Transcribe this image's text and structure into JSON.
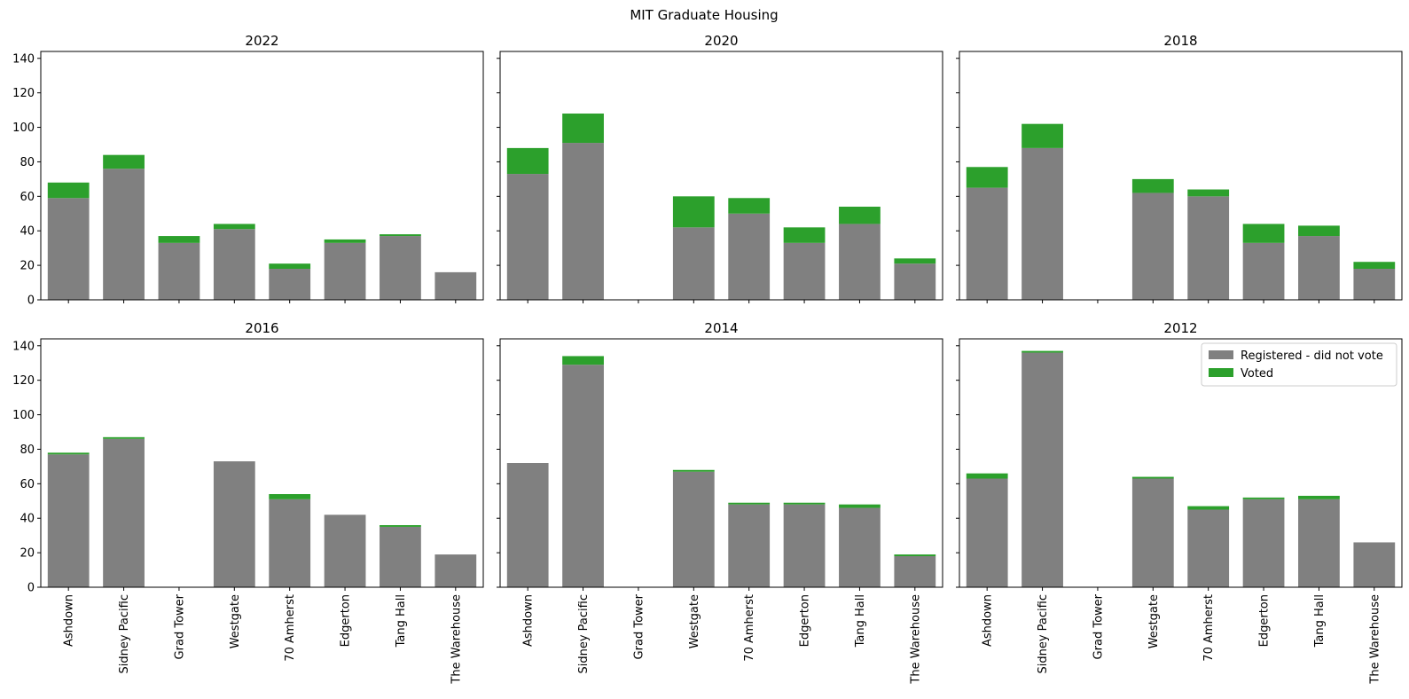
{
  "suptitle": "MIT Graduate Housing",
  "colors": {
    "registered": "#808080",
    "voted": "#2ca02c"
  },
  "legend": {
    "placement": "upper right",
    "panel_index": 5
  },
  "chart_data": [
    {
      "type": "bar",
      "stacked": true,
      "title": "2022",
      "categories": [
        "Ashdown",
        "Sidney Pacific",
        "Grad Tower",
        "Westgate",
        "70 Amherst",
        "Edgerton",
        "Tang Hall",
        "The Warehouse"
      ],
      "ylim": [
        0,
        144
      ],
      "yticks": [
        0,
        20,
        40,
        60,
        80,
        100,
        120,
        140
      ],
      "series": [
        {
          "name": "Registered - did not vote",
          "values": [
            59,
            76,
            33,
            41,
            18,
            33,
            37,
            16
          ]
        },
        {
          "name": "Voted",
          "values": [
            9,
            8,
            4,
            3,
            3,
            2,
            1,
            0
          ]
        }
      ]
    },
    {
      "type": "bar",
      "stacked": true,
      "title": "2020",
      "categories": [
        "Ashdown",
        "Sidney Pacific",
        "Grad Tower",
        "Westgate",
        "70 Amherst",
        "Edgerton",
        "Tang Hall",
        "The Warehouse"
      ],
      "ylim": [
        0,
        144
      ],
      "yticks": [
        0,
        20,
        40,
        60,
        80,
        100,
        120,
        140
      ],
      "series": [
        {
          "name": "Registered - did not vote",
          "values": [
            73,
            91,
            0,
            42,
            50,
            33,
            44,
            21
          ]
        },
        {
          "name": "Voted",
          "values": [
            15,
            17,
            0,
            18,
            9,
            9,
            10,
            3
          ]
        }
      ]
    },
    {
      "type": "bar",
      "stacked": true,
      "title": "2018",
      "categories": [
        "Ashdown",
        "Sidney Pacific",
        "Grad Tower",
        "Westgate",
        "70 Amherst",
        "Edgerton",
        "Tang Hall",
        "The Warehouse"
      ],
      "ylim": [
        0,
        144
      ],
      "yticks": [
        0,
        20,
        40,
        60,
        80,
        100,
        120,
        140
      ],
      "series": [
        {
          "name": "Registered - did not vote",
          "values": [
            65,
            88,
            0,
            62,
            60,
            33,
            37,
            18
          ]
        },
        {
          "name": "Voted",
          "values": [
            12,
            14,
            0,
            8,
            4,
            11,
            6,
            4
          ]
        }
      ]
    },
    {
      "type": "bar",
      "stacked": true,
      "title": "2016",
      "categories": [
        "Ashdown",
        "Sidney Pacific",
        "Grad Tower",
        "Westgate",
        "70 Amherst",
        "Edgerton",
        "Tang Hall",
        "The Warehouse"
      ],
      "ylim": [
        0,
        144
      ],
      "yticks": [
        0,
        20,
        40,
        60,
        80,
        100,
        120,
        140
      ],
      "series": [
        {
          "name": "Registered - did not vote",
          "values": [
            77,
            86,
            0,
            73,
            51,
            42,
            35,
            19
          ]
        },
        {
          "name": "Voted",
          "values": [
            1,
            1,
            0,
            0,
            3,
            0,
            1,
            0
          ]
        }
      ]
    },
    {
      "type": "bar",
      "stacked": true,
      "title": "2014",
      "categories": [
        "Ashdown",
        "Sidney Pacific",
        "Grad Tower",
        "Westgate",
        "70 Amherst",
        "Edgerton",
        "Tang Hall",
        "The Warehouse"
      ],
      "ylim": [
        0,
        144
      ],
      "yticks": [
        0,
        20,
        40,
        60,
        80,
        100,
        120,
        140
      ],
      "series": [
        {
          "name": "Registered - did not vote",
          "values": [
            72,
            129,
            0,
            67,
            48,
            48,
            46,
            18
          ]
        },
        {
          "name": "Voted",
          "values": [
            0,
            5,
            0,
            1,
            1,
            1,
            2,
            1
          ]
        }
      ]
    },
    {
      "type": "bar",
      "stacked": true,
      "title": "2012",
      "categories": [
        "Ashdown",
        "Sidney Pacific",
        "Grad Tower",
        "Westgate",
        "70 Amherst",
        "Edgerton",
        "Tang Hall",
        "The Warehouse"
      ],
      "ylim": [
        0,
        144
      ],
      "yticks": [
        0,
        20,
        40,
        60,
        80,
        100,
        120,
        140
      ],
      "series": [
        {
          "name": "Registered - did not vote",
          "values": [
            63,
            136,
            0,
            63,
            45,
            51,
            51,
            26
          ]
        },
        {
          "name": "Voted",
          "values": [
            3,
            1,
            0,
            1,
            2,
            1,
            2,
            0
          ]
        }
      ]
    }
  ]
}
